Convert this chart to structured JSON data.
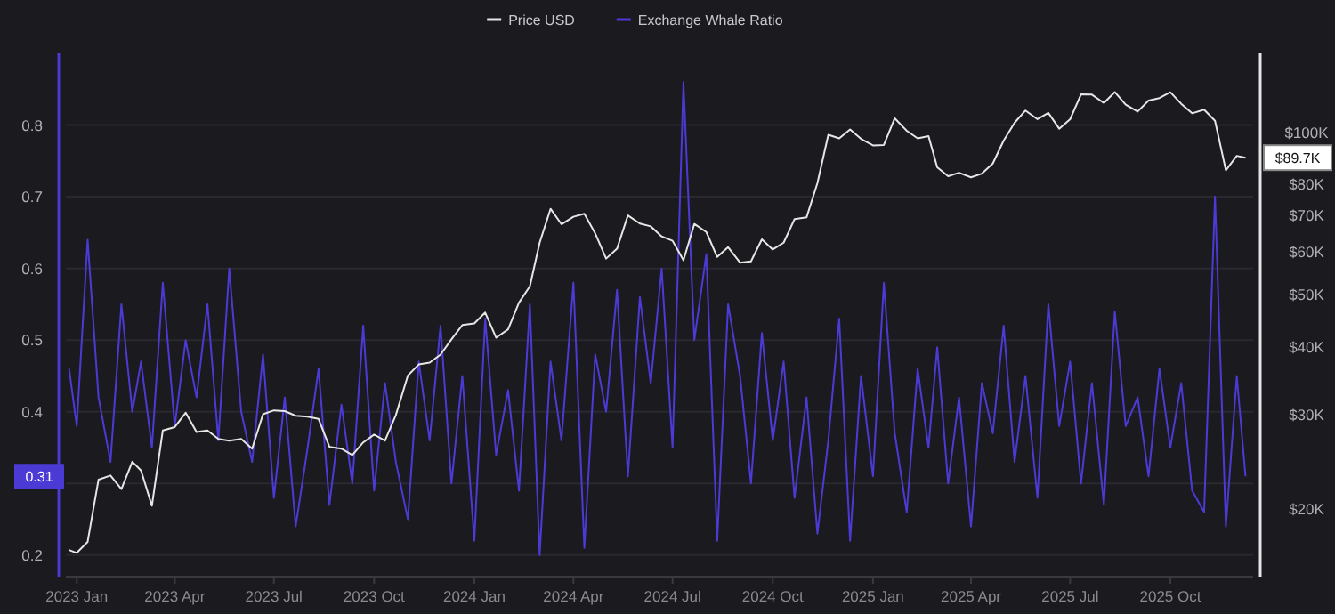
{
  "chart_data": {
    "type": "line",
    "legend": "top",
    "grid": "y",
    "xlim": [
      "2022-12-22",
      "2025-12-16"
    ],
    "xticks": [
      {
        "value": "2023-01-01",
        "label": "2023 Jan"
      },
      {
        "value": "2023-04-01",
        "label": "2023 Apr"
      },
      {
        "value": "2023-07-01",
        "label": "2023 Jul"
      },
      {
        "value": "2023-10-01",
        "label": "2023 Oct"
      },
      {
        "value": "2024-01-01",
        "label": "2024 Jan"
      },
      {
        "value": "2024-04-01",
        "label": "2024 Apr"
      },
      {
        "value": "2024-07-01",
        "label": "2024 Jul"
      },
      {
        "value": "2024-10-01",
        "label": "2024 Oct"
      },
      {
        "value": "2025-01-01",
        "label": "2025 Jan"
      },
      {
        "value": "2025-04-01",
        "label": "2025 Apr"
      },
      {
        "value": "2025-07-01",
        "label": "2025 Jul"
      },
      {
        "value": "2025-10-01",
        "label": "2025 Oct"
      }
    ],
    "ylim": [
      0.17,
      0.9
    ],
    "yticks": [
      0.2,
      0.3,
      0.4,
      0.5,
      0.6,
      0.7,
      0.8
    ],
    "y2lim": [
      15000,
      140000
    ],
    "log": "y2",
    "y2ticks": [
      {
        "value": 20000,
        "label": "$20K"
      },
      {
        "value": 30000,
        "label": "$30K"
      },
      {
        "value": 40000,
        "label": "$40K"
      },
      {
        "value": 50000,
        "label": "$50K"
      },
      {
        "value": 60000,
        "label": "$60K"
      },
      {
        "value": 70000,
        "label": "$70K"
      },
      {
        "value": 80000,
        "label": "$80K"
      },
      {
        "value": 100000,
        "label": "$100K"
      }
    ],
    "x": [
      "2022-12-25",
      "2023-01-01",
      "2023-01-11",
      "2023-01-21",
      "2023-02-01",
      "2023-02-11",
      "2023-02-21",
      "2023-03-01",
      "2023-03-11",
      "2023-03-21",
      "2023-04-01",
      "2023-04-11",
      "2023-04-21",
      "2023-05-01",
      "2023-05-11",
      "2023-05-21",
      "2023-06-01",
      "2023-06-11",
      "2023-06-21",
      "2023-07-01",
      "2023-07-11",
      "2023-07-21",
      "2023-08-01",
      "2023-08-11",
      "2023-08-21",
      "2023-09-01",
      "2023-09-11",
      "2023-09-21",
      "2023-10-01",
      "2023-10-11",
      "2023-10-21",
      "2023-11-01",
      "2023-11-11",
      "2023-11-21",
      "2023-12-01",
      "2023-12-11",
      "2023-12-21",
      "2024-01-01",
      "2024-01-11",
      "2024-01-21",
      "2024-02-01",
      "2024-02-11",
      "2024-02-21",
      "2024-03-01",
      "2024-03-11",
      "2024-03-21",
      "2024-04-01",
      "2024-04-11",
      "2024-04-21",
      "2024-05-01",
      "2024-05-11",
      "2024-05-21",
      "2024-06-01",
      "2024-06-11",
      "2024-06-21",
      "2024-07-01",
      "2024-07-11",
      "2024-07-21",
      "2024-08-01",
      "2024-08-11",
      "2024-08-21",
      "2024-09-01",
      "2024-09-11",
      "2024-09-21",
      "2024-10-01",
      "2024-10-11",
      "2024-10-21",
      "2024-11-01",
      "2024-11-11",
      "2024-11-21",
      "2024-12-01",
      "2024-12-11",
      "2024-12-21",
      "2025-01-01",
      "2025-01-11",
      "2025-01-21",
      "2025-02-01",
      "2025-02-11",
      "2025-02-21",
      "2025-03-01",
      "2025-03-11",
      "2025-03-21",
      "2025-04-01",
      "2025-04-11",
      "2025-04-21",
      "2025-05-01",
      "2025-05-11",
      "2025-05-21",
      "2025-06-01",
      "2025-06-11",
      "2025-06-21",
      "2025-07-01",
      "2025-07-11",
      "2025-07-21",
      "2025-08-01",
      "2025-08-11",
      "2025-08-21",
      "2025-09-01",
      "2025-09-11",
      "2025-09-21",
      "2025-10-01",
      "2025-10-11",
      "2025-10-21",
      "2025-11-01",
      "2025-11-11",
      "2025-11-21",
      "2025-12-01",
      "2025-12-09"
    ],
    "series": [
      {
        "name": "Price USD",
        "color": "#e6e6e6",
        "axis": "y2",
        "values": [
          16800,
          16600,
          17400,
          22700,
          23100,
          21800,
          24500,
          23600,
          20300,
          28000,
          28400,
          30200,
          27800,
          28000,
          27000,
          26800,
          27000,
          25900,
          30000,
          30500,
          30400,
          29800,
          29700,
          29400,
          26100,
          25900,
          25200,
          26600,
          27500,
          26800,
          29900,
          35400,
          37100,
          37400,
          38700,
          41300,
          43900,
          44200,
          46300,
          41600,
          43100,
          48300,
          51800,
          62400,
          72100,
          67500,
          69700,
          70600,
          64900,
          58300,
          60800,
          70100,
          67700,
          66900,
          64100,
          62900,
          57900,
          67600,
          65300,
          58700,
          61200,
          57300,
          57600,
          63300,
          60600,
          62400,
          69000,
          69500,
          80500,
          98900,
          97400,
          101200,
          97200,
          94500,
          94700,
          106100,
          100600,
          97400,
          98300,
          86100,
          82900,
          84100,
          82500,
          83800,
          87500,
          96500,
          104100,
          109700,
          105700,
          108600,
          101500,
          105700,
          117500,
          117400,
          113300,
          118700,
          112500,
          109200,
          114500,
          115700,
          118600,
          112900,
          108400,
          110100,
          105000,
          85000,
          90400,
          89700
        ]
      },
      {
        "name": "Exchange Whale Ratio",
        "color": "#4b3bd4",
        "values": [
          0.46,
          0.38,
          0.64,
          0.42,
          0.33,
          0.55,
          0.4,
          0.47,
          0.35,
          0.58,
          0.38,
          0.5,
          0.42,
          0.55,
          0.36,
          0.6,
          0.4,
          0.33,
          0.48,
          0.28,
          0.42,
          0.24,
          0.35,
          0.46,
          0.27,
          0.41,
          0.3,
          0.52,
          0.29,
          0.44,
          0.33,
          0.25,
          0.47,
          0.36,
          0.52,
          0.3,
          0.45,
          0.22,
          0.53,
          0.34,
          0.43,
          0.29,
          0.55,
          0.2,
          0.47,
          0.36,
          0.58,
          0.21,
          0.48,
          0.4,
          0.57,
          0.31,
          0.56,
          0.44,
          0.6,
          0.35,
          0.86,
          0.5,
          0.62,
          0.22,
          0.55,
          0.45,
          0.3,
          0.51,
          0.36,
          0.47,
          0.28,
          0.42,
          0.23,
          0.36,
          0.53,
          0.22,
          0.45,
          0.31,
          0.58,
          0.37,
          0.26,
          0.46,
          0.35,
          0.49,
          0.3,
          0.42,
          0.24,
          0.44,
          0.37,
          0.52,
          0.33,
          0.45,
          0.28,
          0.55,
          0.38,
          0.47,
          0.3,
          0.44,
          0.27,
          0.54,
          0.38,
          0.42,
          0.31,
          0.46,
          0.35,
          0.44,
          0.29,
          0.26,
          0.7,
          0.24,
          0.45,
          0.31
        ]
      }
    ],
    "annotations": [
      "$89.7K",
      "0.31"
    ]
  }
}
